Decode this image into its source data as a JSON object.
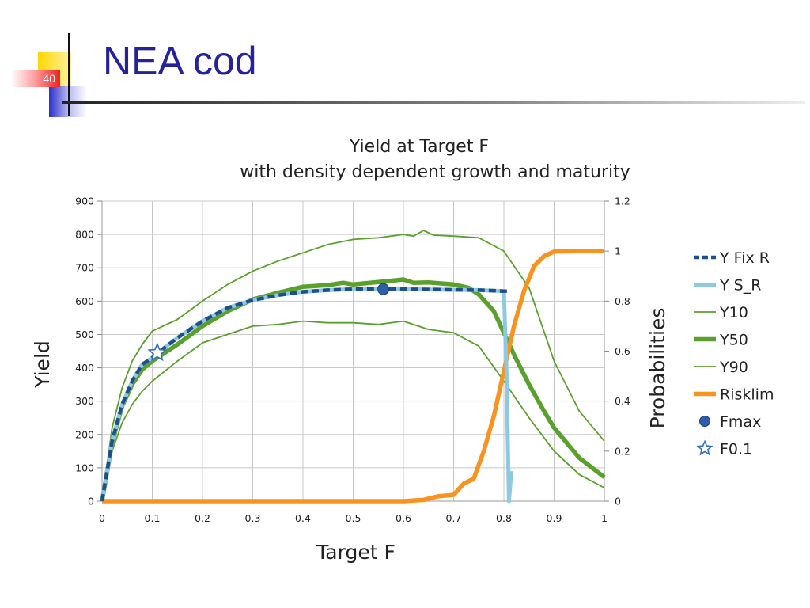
{
  "slide": {
    "title": "NEA cod",
    "number": "40"
  },
  "colors": {
    "title": "#26229a",
    "y_fix_r": "#1f4e8a",
    "y_s_r": "#8ec9e4",
    "y_band": "#5aa02c",
    "risklim": "#f7931e",
    "fmax": "#2f5fa8",
    "f01": "#2f6fbf"
  },
  "chart_data": {
    "type": "line",
    "title": "Yield at Target F",
    "subtitle": "with density dependent growth and maturity",
    "xlabel": "Target F",
    "ylabel": "Yield",
    "y2label": "Probabilities",
    "xlim": [
      0,
      1
    ],
    "ylim": [
      0,
      900
    ],
    "y2lim": [
      0,
      1.2
    ],
    "xticks": [
      "0",
      "0.1",
      "0.2",
      "0.3",
      "0.4",
      "0.5",
      "0.6",
      "0.7",
      "0.8",
      "0.9",
      "1"
    ],
    "yticks": [
      "0",
      "100",
      "200",
      "300",
      "400",
      "500",
      "600",
      "700",
      "800",
      "900"
    ],
    "y2ticks": [
      "0",
      "0.2",
      "0.4",
      "0.6",
      "0.8",
      "1",
      "1.2"
    ],
    "grid": true,
    "legend_position": "right",
    "series": [
      {
        "name": "Y  Fix R",
        "axis": "left",
        "style": "dashed",
        "x": [
          0,
          0.02,
          0.04,
          0.06,
          0.08,
          0.1,
          0.12,
          0.15,
          0.18,
          0.2,
          0.25,
          0.3,
          0.35,
          0.4,
          0.45,
          0.5,
          0.55,
          0.6,
          0.65,
          0.7,
          0.75,
          0.8,
          0.81
        ],
        "y": [
          0,
          180,
          290,
          360,
          410,
          430,
          455,
          490,
          520,
          540,
          580,
          603,
          618,
          628,
          633,
          636,
          637,
          636,
          635,
          634,
          633,
          630,
          630
        ]
      },
      {
        "name": "Y  S_R",
        "axis": "left",
        "style": "solid",
        "x": [
          0,
          0.02,
          0.04,
          0.06,
          0.08,
          0.1,
          0.12,
          0.15,
          0.18,
          0.2,
          0.25,
          0.3,
          0.35,
          0.4,
          0.45,
          0.5,
          0.55,
          0.6,
          0.65,
          0.7,
          0.75,
          0.8,
          0.805,
          0.81,
          0.815
        ],
        "y": [
          0,
          180,
          290,
          360,
          410,
          430,
          455,
          490,
          520,
          540,
          580,
          603,
          618,
          628,
          633,
          636,
          637,
          636,
          635,
          634,
          633,
          630,
          400,
          0,
          90
        ]
      },
      {
        "name": "Y10",
        "axis": "left",
        "style": "thin",
        "x": [
          0,
          0.02,
          0.04,
          0.06,
          0.08,
          0.1,
          0.15,
          0.2,
          0.25,
          0.3,
          0.35,
          0.4,
          0.45,
          0.5,
          0.55,
          0.6,
          0.62,
          0.64,
          0.66,
          0.7,
          0.75,
          0.8,
          0.85,
          0.9,
          0.95,
          1
        ],
        "y": [
          0,
          220,
          340,
          420,
          470,
          510,
          545,
          600,
          650,
          690,
          720,
          745,
          770,
          785,
          790,
          800,
          795,
          812,
          798,
          795,
          790,
          750,
          640,
          420,
          270,
          180
        ]
      },
      {
        "name": "Y50",
        "axis": "left",
        "style": "thick",
        "x": [
          0,
          0.02,
          0.04,
          0.06,
          0.08,
          0.1,
          0.15,
          0.2,
          0.25,
          0.3,
          0.35,
          0.4,
          0.45,
          0.48,
          0.5,
          0.55,
          0.6,
          0.62,
          0.65,
          0.7,
          0.73,
          0.75,
          0.78,
          0.8,
          0.82,
          0.85,
          0.88,
          0.9,
          0.95,
          1
        ],
        "y": [
          0,
          175,
          285,
          350,
          395,
          420,
          470,
          525,
          570,
          605,
          625,
          643,
          648,
          655,
          650,
          657,
          665,
          655,
          656,
          650,
          640,
          620,
          570,
          505,
          440,
          350,
          270,
          220,
          130,
          72
        ]
      },
      {
        "name": "Y90",
        "axis": "left",
        "style": "thin",
        "x": [
          0,
          0.02,
          0.04,
          0.06,
          0.08,
          0.1,
          0.15,
          0.2,
          0.25,
          0.3,
          0.35,
          0.4,
          0.45,
          0.5,
          0.55,
          0.6,
          0.65,
          0.7,
          0.75,
          0.8,
          0.85,
          0.9,
          0.95,
          1
        ],
        "y": [
          0,
          150,
          235,
          290,
          330,
          360,
          420,
          475,
          500,
          525,
          530,
          540,
          535,
          535,
          530,
          540,
          515,
          505,
          465,
          360,
          250,
          150,
          80,
          40
        ]
      },
      {
        "name": "Risklim",
        "axis": "right",
        "style": "thick",
        "x": [
          0,
          0.1,
          0.2,
          0.3,
          0.4,
          0.5,
          0.6,
          0.64,
          0.67,
          0.7,
          0.72,
          0.74,
          0.76,
          0.78,
          0.8,
          0.82,
          0.84,
          0.86,
          0.88,
          0.9,
          0.95,
          1
        ],
        "y": [
          0,
          0,
          0,
          0,
          0,
          0,
          0,
          0.005,
          0.02,
          0.025,
          0.07,
          0.09,
          0.2,
          0.34,
          0.52,
          0.7,
          0.84,
          0.94,
          0.98,
          0.998,
          1.0,
          1.0
        ]
      }
    ],
    "points": [
      {
        "name": "Fmax",
        "x": 0.56,
        "y": 636
      },
      {
        "name": "F0.1",
        "x": 0.11,
        "y": 445
      }
    ]
  }
}
